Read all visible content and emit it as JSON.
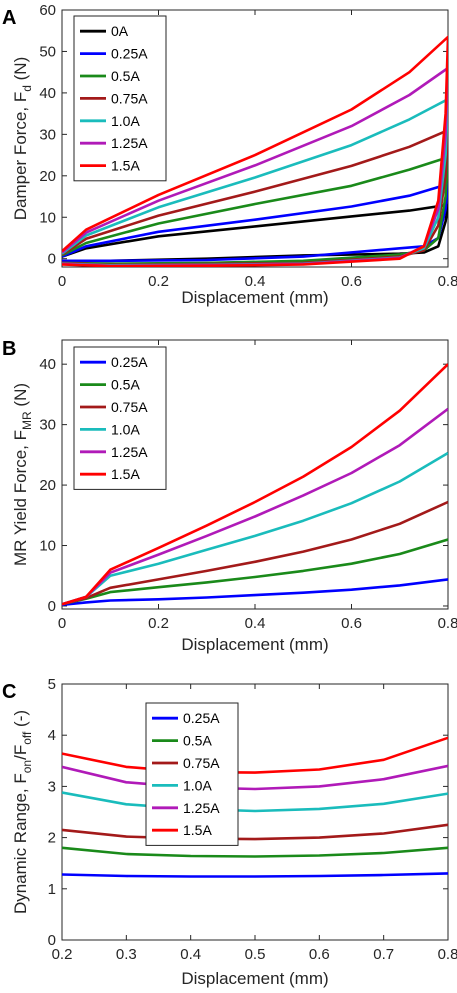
{
  "chart_data": [
    {
      "panel": "A",
      "type": "line",
      "xlabel": "Displacement (mm)",
      "ylabel": "Damper Force, F",
      "ylabel_sub": "d",
      "ylabel_unit": " (N)",
      "xlim": [
        0,
        0.8
      ],
      "ylim": [
        -2,
        60
      ],
      "xticks": [
        0,
        0.2,
        0.4,
        0.6,
        0.8
      ],
      "yticks": [
        0,
        10,
        20,
        30,
        40,
        50,
        60
      ],
      "legend_position": "top-left",
      "series": [
        {
          "name": "0A",
          "color": "#000000",
          "upper": [
            [
              0,
              0.5
            ],
            [
              0.05,
              2.5
            ],
            [
              0.2,
              5.4
            ],
            [
              0.4,
              7.8
            ],
            [
              0.6,
              10.2
            ],
            [
              0.72,
              11.6
            ],
            [
              0.8,
              13
            ]
          ],
          "lower": [
            [
              0.8,
              13
            ],
            [
              0.795,
              9
            ],
            [
              0.78,
              3
            ],
            [
              0.75,
              1.5
            ],
            [
              0.7,
              1.2
            ],
            [
              0.5,
              0.8
            ],
            [
              0.3,
              0
            ],
            [
              0.1,
              -0.5
            ],
            [
              0,
              -0.5
            ]
          ]
        },
        {
          "name": "0.25A",
          "color": "#0000ff",
          "upper": [
            [
              0,
              0.5
            ],
            [
              0.05,
              3
            ],
            [
              0.2,
              6.5
            ],
            [
              0.4,
              9.4
            ],
            [
              0.6,
              12.6
            ],
            [
              0.72,
              15.2
            ],
            [
              0.8,
              18
            ]
          ],
          "lower": [
            [
              0.8,
              18
            ],
            [
              0.795,
              12
            ],
            [
              0.78,
              5
            ],
            [
              0.75,
              3
            ],
            [
              0.7,
              2.5
            ],
            [
              0.5,
              0.5
            ],
            [
              0.3,
              -0.3
            ],
            [
              0.1,
              -0.5
            ],
            [
              0,
              -0.5
            ]
          ]
        },
        {
          "name": "0.5A",
          "color": "#1a8a1a",
          "upper": [
            [
              0,
              0.8
            ],
            [
              0.05,
              3.8
            ],
            [
              0.2,
              8.5
            ],
            [
              0.4,
              13.2
            ],
            [
              0.6,
              17.6
            ],
            [
              0.72,
              21.5
            ],
            [
              0.8,
              24.5
            ]
          ],
          "lower": [
            [
              0.8,
              24.5
            ],
            [
              0.795,
              15
            ],
            [
              0.78,
              5
            ],
            [
              0.75,
              2
            ],
            [
              0.7,
              1
            ],
            [
              0.5,
              -0.5
            ],
            [
              0.3,
              -1
            ],
            [
              0.1,
              -1.2
            ],
            [
              0,
              -1
            ]
          ]
        },
        {
          "name": "0.75A",
          "color": "#a31a1a",
          "upper": [
            [
              0,
              1
            ],
            [
              0.05,
              4.8
            ],
            [
              0.2,
              10.4
            ],
            [
              0.4,
              16.2
            ],
            [
              0.6,
              22.4
            ],
            [
              0.72,
              27
            ],
            [
              0.8,
              31
            ]
          ],
          "lower": [
            [
              0.8,
              31
            ],
            [
              0.795,
              20
            ],
            [
              0.78,
              8
            ],
            [
              0.75,
              2
            ],
            [
              0.7,
              0.5
            ],
            [
              0.5,
              -1
            ],
            [
              0.3,
              -1.3
            ],
            [
              0.1,
              -1.5
            ],
            [
              0,
              -1
            ]
          ]
        },
        {
          "name": "1.0A",
          "color": "#1abcbc",
          "upper": [
            [
              0,
              1.2
            ],
            [
              0.05,
              5.6
            ],
            [
              0.2,
              12.4
            ],
            [
              0.4,
              19.6
            ],
            [
              0.6,
              27.4
            ],
            [
              0.72,
              33.6
            ],
            [
              0.8,
              38.5
            ]
          ],
          "lower": [
            [
              0.8,
              38.5
            ],
            [
              0.795,
              25
            ],
            [
              0.78,
              10
            ],
            [
              0.75,
              2.5
            ],
            [
              0.7,
              0.3
            ],
            [
              0.5,
              -1.2
            ],
            [
              0.3,
              -1.5
            ],
            [
              0.1,
              -1.6
            ],
            [
              0,
              -1.2
            ]
          ]
        },
        {
          "name": "1.25A",
          "color": "#b01ab8",
          "upper": [
            [
              0,
              1.5
            ],
            [
              0.05,
              6.3
            ],
            [
              0.2,
              14
            ],
            [
              0.4,
              22.5
            ],
            [
              0.6,
              32
            ],
            [
              0.72,
              39.5
            ],
            [
              0.8,
              46
            ]
          ],
          "lower": [
            [
              0.8,
              46
            ],
            [
              0.795,
              30
            ],
            [
              0.78,
              12
            ],
            [
              0.75,
              3
            ],
            [
              0.7,
              0.2
            ],
            [
              0.5,
              -1.3
            ],
            [
              0.3,
              -1.6
            ],
            [
              0.1,
              -1.7
            ],
            [
              0,
              -1.3
            ]
          ]
        },
        {
          "name": "1.5A",
          "color": "#ff0000",
          "upper": [
            [
              0,
              1.8
            ],
            [
              0.05,
              7
            ],
            [
              0.2,
              15.4
            ],
            [
              0.4,
              25
            ],
            [
              0.6,
              36
            ],
            [
              0.72,
              45
            ],
            [
              0.8,
              53.5
            ]
          ],
          "lower": [
            [
              0.8,
              53.5
            ],
            [
              0.795,
              35
            ],
            [
              0.78,
              14
            ],
            [
              0.75,
              3
            ],
            [
              0.7,
              0
            ],
            [
              0.5,
              -1.4
            ],
            [
              0.3,
              -1.7
            ],
            [
              0.1,
              -1.8
            ],
            [
              0,
              -1.4
            ]
          ]
        }
      ]
    },
    {
      "panel": "B",
      "type": "line",
      "xlabel": "Displacement",
      "xlabel_unit": " (mm)",
      "ylabel": "MR Yield Force, F",
      "ylabel_sub": "MR",
      "ylabel_unit": " (N)",
      "xlim": [
        0,
        0.8
      ],
      "ylim": [
        -0.5,
        44
      ],
      "xticks": [
        0,
        0.2,
        0.4,
        0.6,
        0.8
      ],
      "yticks": [
        0,
        10,
        20,
        30,
        40
      ],
      "legend_position": "top-left",
      "series": [
        {
          "name": "0.25A",
          "color": "#0000ff",
          "points": [
            [
              0,
              0.2
            ],
            [
              0.05,
              0.6
            ],
            [
              0.1,
              0.9
            ],
            [
              0.2,
              1.1
            ],
            [
              0.3,
              1.4
            ],
            [
              0.4,
              1.8
            ],
            [
              0.5,
              2.2
            ],
            [
              0.6,
              2.7
            ],
            [
              0.7,
              3.4
            ],
            [
              0.8,
              4.4
            ]
          ]
        },
        {
          "name": "0.5A",
          "color": "#1a8a1a",
          "points": [
            [
              0,
              0.3
            ],
            [
              0.05,
              1.2
            ],
            [
              0.1,
              2.3
            ],
            [
              0.2,
              3.1
            ],
            [
              0.3,
              3.9
            ],
            [
              0.4,
              4.8
            ],
            [
              0.5,
              5.8
            ],
            [
              0.6,
              7
            ],
            [
              0.7,
              8.6
            ],
            [
              0.8,
              11
            ]
          ]
        },
        {
          "name": "0.75A",
          "color": "#a31a1a",
          "points": [
            [
              0,
              0.3
            ],
            [
              0.05,
              1.3
            ],
            [
              0.1,
              3
            ],
            [
              0.2,
              4.4
            ],
            [
              0.3,
              5.8
            ],
            [
              0.4,
              7.3
            ],
            [
              0.5,
              9
            ],
            [
              0.6,
              11
            ],
            [
              0.7,
              13.6
            ],
            [
              0.8,
              17.2
            ]
          ]
        },
        {
          "name": "1.0A",
          "color": "#1abcbc",
          "points": [
            [
              0,
              0.3
            ],
            [
              0.05,
              1.5
            ],
            [
              0.1,
              5
            ],
            [
              0.2,
              7
            ],
            [
              0.3,
              9.3
            ],
            [
              0.4,
              11.6
            ],
            [
              0.5,
              14.1
            ],
            [
              0.6,
              17
            ],
            [
              0.7,
              20.6
            ],
            [
              0.8,
              25.3
            ]
          ]
        },
        {
          "name": "1.25A",
          "color": "#b01ab8",
          "points": [
            [
              0,
              0.3
            ],
            [
              0.05,
              1.5
            ],
            [
              0.1,
              5.5
            ],
            [
              0.2,
              8.5
            ],
            [
              0.3,
              11.6
            ],
            [
              0.4,
              14.8
            ],
            [
              0.5,
              18.3
            ],
            [
              0.6,
              22
            ],
            [
              0.7,
              26.6
            ],
            [
              0.8,
              32.6
            ]
          ]
        },
        {
          "name": "1.5A",
          "color": "#ff0000",
          "points": [
            [
              0,
              0.3
            ],
            [
              0.05,
              1.5
            ],
            [
              0.1,
              6
            ],
            [
              0.2,
              9.6
            ],
            [
              0.3,
              13.3
            ],
            [
              0.4,
              17.2
            ],
            [
              0.5,
              21.4
            ],
            [
              0.6,
              26.3
            ],
            [
              0.7,
              32.3
            ],
            [
              0.8,
              40
            ]
          ]
        }
      ]
    },
    {
      "panel": "C",
      "type": "line",
      "xlabel": "Displacement",
      "xlabel_unit": " (mm)",
      "ylabel": "Dynamic Range, F",
      "ylabel_sub1": "on",
      "ylabel_mid": "/F",
      "ylabel_sub2": "off",
      "ylabel_unit": " (-)",
      "xlim": [
        0.2,
        0.8
      ],
      "ylim": [
        0,
        5
      ],
      "xticks": [
        0.2,
        0.3,
        0.4,
        0.5,
        0.6,
        0.7,
        0.8
      ],
      "yticks": [
        0,
        1,
        2,
        3,
        4,
        5
      ],
      "legend_position": "top-left",
      "series": [
        {
          "name": "0.25A",
          "color": "#0000ff",
          "points": [
            [
              0.2,
              1.28
            ],
            [
              0.3,
              1.25
            ],
            [
              0.4,
              1.24
            ],
            [
              0.5,
              1.24
            ],
            [
              0.6,
              1.25
            ],
            [
              0.7,
              1.27
            ],
            [
              0.8,
              1.3
            ]
          ]
        },
        {
          "name": "0.5A",
          "color": "#1a8a1a",
          "points": [
            [
              0.2,
              1.8
            ],
            [
              0.3,
              1.68
            ],
            [
              0.4,
              1.64
            ],
            [
              0.5,
              1.63
            ],
            [
              0.6,
              1.65
            ],
            [
              0.7,
              1.7
            ],
            [
              0.8,
              1.8
            ]
          ]
        },
        {
          "name": "0.75A",
          "color": "#a31a1a",
          "points": [
            [
              0.2,
              2.15
            ],
            [
              0.3,
              2.02
            ],
            [
              0.4,
              1.98
            ],
            [
              0.5,
              1.97
            ],
            [
              0.6,
              2
            ],
            [
              0.7,
              2.08
            ],
            [
              0.8,
              2.25
            ]
          ]
        },
        {
          "name": "1.0A",
          "color": "#1abcbc",
          "points": [
            [
              0.2,
              2.88
            ],
            [
              0.3,
              2.65
            ],
            [
              0.4,
              2.56
            ],
            [
              0.5,
              2.52
            ],
            [
              0.6,
              2.56
            ],
            [
              0.7,
              2.66
            ],
            [
              0.8,
              2.86
            ]
          ]
        },
        {
          "name": "1.25A",
          "color": "#b01ab8",
          "points": [
            [
              0.2,
              3.38
            ],
            [
              0.3,
              3.08
            ],
            [
              0.4,
              2.98
            ],
            [
              0.5,
              2.95
            ],
            [
              0.6,
              3
            ],
            [
              0.7,
              3.14
            ],
            [
              0.8,
              3.4
            ]
          ]
        },
        {
          "name": "1.5A",
          "color": "#ff0000",
          "points": [
            [
              0.2,
              3.64
            ],
            [
              0.3,
              3.38
            ],
            [
              0.4,
              3.28
            ],
            [
              0.5,
              3.27
            ],
            [
              0.6,
              3.33
            ],
            [
              0.7,
              3.52
            ],
            [
              0.8,
              3.95
            ]
          ]
        }
      ]
    }
  ]
}
